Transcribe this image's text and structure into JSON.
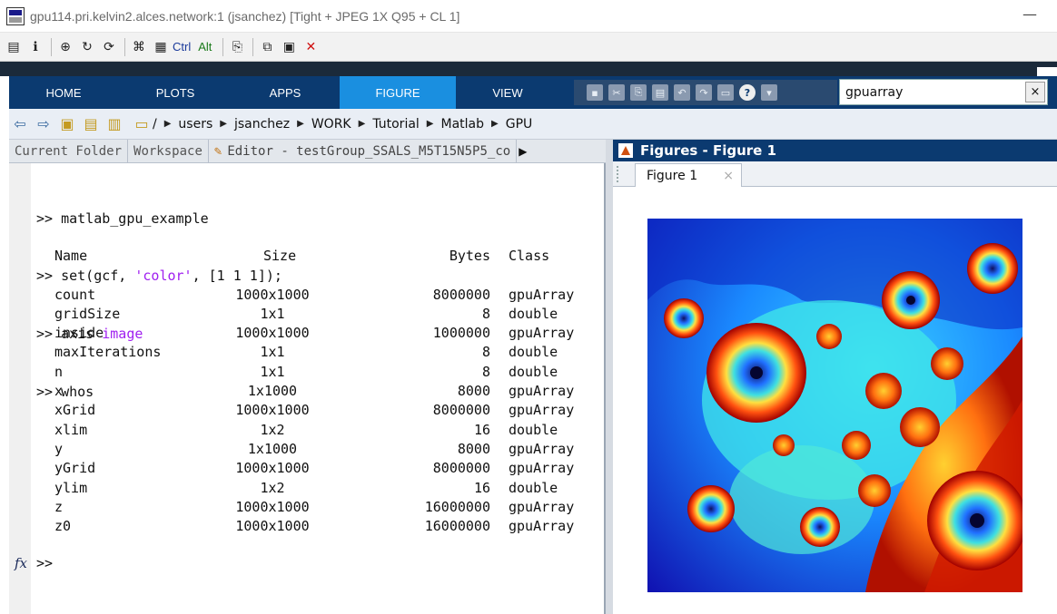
{
  "vnc": {
    "title": "gpu114.pri.kelvin2.alces.network:1 (jsanchez) [Tight + JPEG 1X Q95 + CL 1]",
    "toolbar": {
      "ctrl_label": "Ctrl",
      "alt_label": "Alt"
    }
  },
  "ribbon": {
    "tabs": [
      "HOME",
      "PLOTS",
      "APPS",
      "FIGURE",
      "VIEW"
    ],
    "active_tab": "FIGURE",
    "search_value": "gpuarray",
    "search_clear": "×"
  },
  "address": {
    "root": "/",
    "crumbs": [
      "users",
      "jsanchez",
      "WORK",
      "Tutorial",
      "Matlab",
      "GPU"
    ]
  },
  "left_panel": {
    "tabs": [
      "Current Folder",
      "Workspace",
      "Editor - testGroup_SSALS_M5T15N5P5_co"
    ]
  },
  "command_window": {
    "prompt": ">>",
    "commands": [
      {
        "text": "matlab_gpu_example"
      },
      {
        "text_before": "set(gcf, ",
        "string": "'color'",
        "text_after": ", [1 1 1]);"
      },
      {
        "text_before": "axis ",
        "keyword": "image"
      },
      {
        "text": "whos"
      }
    ],
    "whos_headers": {
      "name": "Name",
      "size": "Size",
      "bytes": "Bytes",
      "class": "Class"
    },
    "whos_rows": [
      {
        "name": "count",
        "size": "1000x1000",
        "bytes": "8000000",
        "class": "gpuArray"
      },
      {
        "name": "gridSize",
        "size": "1x1",
        "bytes": "8",
        "class": "double"
      },
      {
        "name": "inside",
        "size": "1000x1000",
        "bytes": "1000000",
        "class": "gpuArray"
      },
      {
        "name": "maxIterations",
        "size": "1x1",
        "bytes": "8",
        "class": "double"
      },
      {
        "name": "n",
        "size": "1x1",
        "bytes": "8",
        "class": "double"
      },
      {
        "name": "x",
        "size": "1x1000",
        "bytes": "8000",
        "class": "gpuArray"
      },
      {
        "name": "xGrid",
        "size": "1000x1000",
        "bytes": "8000000",
        "class": "gpuArray"
      },
      {
        "name": "xlim",
        "size": "1x2",
        "bytes": "16",
        "class": "double"
      },
      {
        "name": "y",
        "size": "1x1000",
        "bytes": "8000",
        "class": "gpuArray"
      },
      {
        "name": "yGrid",
        "size": "1000x1000",
        "bytes": "8000000",
        "class": "gpuArray"
      },
      {
        "name": "ylim",
        "size": "1x2",
        "bytes": "16",
        "class": "double"
      },
      {
        "name": "z",
        "size": "1000x1000",
        "bytes": "16000000",
        "class": "gpuArray"
      },
      {
        "name": "z0",
        "size": "1000x1000",
        "bytes": "16000000",
        "class": "gpuArray"
      }
    ],
    "fx_label": "fx"
  },
  "figure_panel": {
    "header": "Figures - Figure 1",
    "tab_label": "Figure 1",
    "tab_close": "×"
  },
  "colors": {
    "ribbon_bg": "#0b3a70",
    "ribbon_active": "#1a8fe0",
    "string_literal": "#a020f0"
  }
}
